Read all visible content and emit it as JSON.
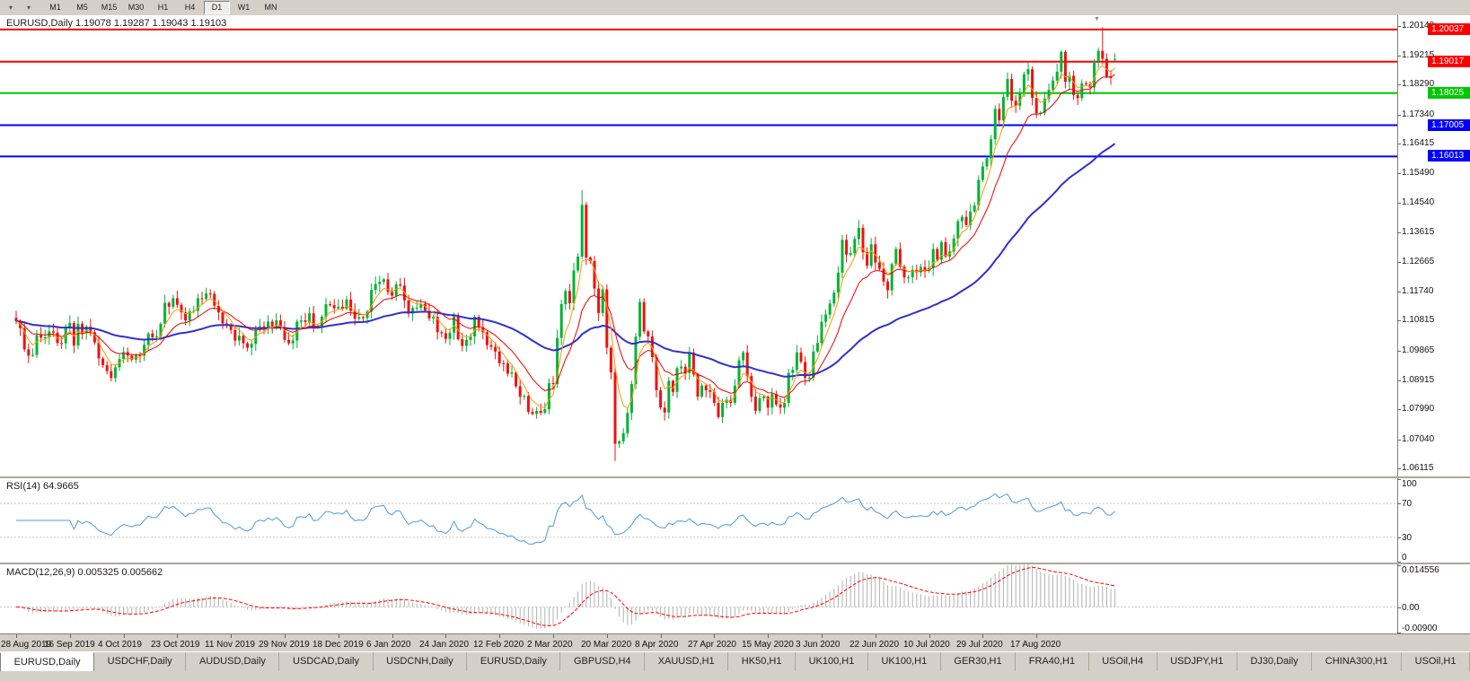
{
  "toolbar": {
    "timeframes": [
      "M1",
      "M5",
      "M15",
      "M30",
      "H1",
      "H4",
      "D1",
      "W1",
      "MN"
    ],
    "active_timeframe": "D1"
  },
  "chart_header": {
    "symbol_ohlc": "EURUSD,Daily 1.19078 1.19287 1.19043 1.19103"
  },
  "indicators": {
    "rsi_label": "RSI(14) 64.9665",
    "macd_label": "MACD(12,26,9) 0.005325 0.005662"
  },
  "price_axis": {
    "labels": [
      "1.20140",
      "1.19215",
      "1.18290",
      "1.17340",
      "1.16415",
      "1.15490",
      "1.14540",
      "1.13615",
      "1.12665",
      "1.11740",
      "1.10815",
      "1.09865",
      "1.08915",
      "1.07990",
      "1.07040",
      "1.06115"
    ]
  },
  "rsi_axis": {
    "labels": [
      "100",
      "70",
      "30",
      "0"
    ],
    "values": [
      100,
      70,
      30,
      0
    ]
  },
  "macd_axis": {
    "labels": [
      "0.014556",
      "0.00",
      "-0.00900"
    ],
    "values": [
      0.014556,
      0,
      -0.009
    ]
  },
  "levels": [
    {
      "price": 1.20037,
      "label": "1.20037",
      "color": "#ff0000"
    },
    {
      "price": 1.19017,
      "label": "1.19017",
      "color": "#ff0000"
    },
    {
      "price": 1.18025,
      "label": "1.18025",
      "color": "#00c800"
    },
    {
      "price": 1.17005,
      "label": "1.17005",
      "color": "#0000ff"
    },
    {
      "price": 1.16013,
      "label": "1.16013",
      "color": "#0000ff"
    }
  ],
  "dates": [
    "28 Aug 2019",
    "16 Sep 2019",
    "4 Oct 2019",
    "23 Oct 2019",
    "11 Nov 2019",
    "29 Nov 2019",
    "18 Dec 2019",
    "6 Jan 2020",
    "24 Jan 2020",
    "12 Feb 2020",
    "2 Mar 2020",
    "20 Mar 2020",
    "8 Apr 2020",
    "27 Apr 2020",
    "15 May 2020",
    "3 Jun 2020",
    "22 Jun 2020",
    "10 Jul 2020",
    "29 Jul 2020",
    "17 Aug 2020"
  ],
  "tabs": [
    {
      "label": "EURUSD,Daily",
      "active": true
    },
    {
      "label": "USDCHF,Daily"
    },
    {
      "label": "AUDUSD,Daily"
    },
    {
      "label": "USDCAD,Daily"
    },
    {
      "label": "USDCNH,Daily"
    },
    {
      "label": "EURUSD,Daily"
    },
    {
      "label": "GBPUSD,H4"
    },
    {
      "label": "XAUUSD,H1"
    },
    {
      "label": "HK50,H1"
    },
    {
      "label": "UK100,H1"
    },
    {
      "label": "UK100,H1"
    },
    {
      "label": "GER30,H1"
    },
    {
      "label": "FRA40,H1"
    },
    {
      "label": "USOil,H4"
    },
    {
      "label": "USDJPY,H1"
    },
    {
      "label": "DJ30,Daily"
    },
    {
      "label": "CHINA300,H1"
    },
    {
      "label": "USOil,H1"
    }
  ],
  "chart_data": {
    "type": "candlestick",
    "symbol": "EURUSD",
    "timeframe": "Daily",
    "current_ohlc": {
      "open": 1.19078,
      "high": 1.19287,
      "low": 1.19043,
      "close": 1.19103
    },
    "price_range": {
      "max": 1.2049,
      "min": 1.0587
    },
    "first_open": 1.109,
    "up_color": "#00b336",
    "down_color": "#ee1111",
    "closes": [
      1.1079,
      1.1057,
      1.099,
      1.097,
      1.0972,
      1.1035,
      1.1027,
      1.1028,
      1.1047,
      1.1043,
      1.101,
      1.1009,
      1.1062,
      1.1073,
      1.1002,
      1.1071,
      1.1041,
      1.1062,
      1.1044,
      1.1012,
      1.0961,
      1.094,
      1.0921,
      1.0899,
      1.0933,
      1.0959,
      1.0981,
      1.097,
      1.0957,
      1.0971,
      1.097,
      1.1004,
      1.104,
      1.1028,
      1.1031,
      1.1071,
      1.1137,
      1.1125,
      1.1152,
      1.1131,
      1.1107,
      1.1082,
      1.111,
      1.1112,
      1.1152,
      1.115,
      1.1167,
      1.1166,
      1.1128,
      1.1107,
      1.1072,
      1.1069,
      1.1051,
      1.1018,
      1.1033,
      1.1009,
      1.0995,
      1.1007,
      1.1052,
      1.1063,
      1.1055,
      1.1078,
      1.1063,
      1.1082,
      1.106,
      1.102,
      1.1009,
      1.1018,
      1.1078,
      1.1082,
      1.1077,
      1.1104,
      1.106,
      1.1063,
      1.1093,
      1.1133,
      1.113,
      1.112,
      1.1125,
      1.1119,
      1.1148,
      1.1112,
      1.1087,
      1.1092,
      1.1089,
      1.111,
      1.1178,
      1.1197,
      1.1204,
      1.1212,
      1.1172,
      1.116,
      1.1196,
      1.1192,
      1.1145,
      1.1103,
      1.1121,
      1.1122,
      1.1134,
      1.1113,
      1.1088,
      1.1093,
      1.1044,
      1.1041,
      1.1023,
      1.1043,
      1.1095,
      1.1022,
      1.1001,
      1.102,
      1.1031,
      1.1093,
      1.106,
      1.1044,
      1.1003,
      1.0998,
      1.0983,
      1.0946,
      1.0945,
      1.0913,
      1.0917,
      1.0873,
      1.084,
      1.0842,
      1.0792,
      1.0785,
      1.0795,
      1.0789,
      1.08,
      1.0883,
      1.088,
      1.1026,
      1.1133,
      1.1175,
      1.1136,
      1.124,
      1.1284,
      1.1448,
      1.1281,
      1.127,
      1.1183,
      1.1105,
      1.118,
      1.0995,
      1.0917,
      1.0691,
      1.0698,
      1.0724,
      1.0788,
      1.088,
      1.103,
      1.114,
      1.1047,
      1.1031,
      1.0965,
      1.086,
      1.0805,
      1.079,
      1.089,
      1.0855,
      1.093,
      1.0935,
      1.0915,
      1.098,
      1.091,
      1.084,
      1.0875,
      1.086,
      1.0855,
      1.082,
      1.0775,
      1.082,
      1.083,
      1.082,
      1.0875,
      1.0955,
      1.098,
      1.0905,
      1.084,
      1.0795,
      1.0835,
      1.084,
      1.0805,
      1.0848,
      1.0815,
      1.0805,
      1.082,
      1.0915,
      1.0925,
      1.098,
      1.095,
      1.09,
      1.09,
      1.0983,
      1.101,
      1.1077,
      1.11,
      1.1135,
      1.117,
      1.1233,
      1.1337,
      1.129,
      1.1295,
      1.134,
      1.1375,
      1.1298,
      1.1255,
      1.1323,
      1.1265,
      1.1245,
      1.1205,
      1.1177,
      1.126,
      1.1308,
      1.1252,
      1.1218,
      1.1218,
      1.1242,
      1.1234,
      1.1251,
      1.1239,
      1.1248,
      1.1308,
      1.1274,
      1.133,
      1.1284,
      1.13,
      1.1341,
      1.1396,
      1.141,
      1.1384,
      1.1427,
      1.1446,
      1.1527,
      1.157,
      1.1596,
      1.1656,
      1.1752,
      1.1716,
      1.179,
      1.1847,
      1.1778,
      1.1762,
      1.1802,
      1.1862,
      1.1878,
      1.1787,
      1.1738,
      1.174,
      1.1784,
      1.1813,
      1.1842,
      1.187,
      1.1933,
      1.1838,
      1.1857,
      1.1796,
      1.1786,
      1.1833,
      1.183,
      1.182,
      1.1903,
      1.1936,
      1.1911,
      1.1855,
      1.185,
      1.191
    ],
    "overrides": {
      "137": {
        "high": 1.1495
      },
      "145": {
        "low": 1.0636
      },
      "263": {
        "high": 1.2011
      },
      "266": {
        "open": 1.19078,
        "high": 1.19287,
        "low": 1.19043,
        "close": 1.19103
      }
    },
    "moving_averages": [
      {
        "period": 55,
        "color": "#3030cc",
        "width": 2,
        "name": "ma-slow"
      },
      {
        "period": 13,
        "color": "#ee0000",
        "width": 1,
        "name": "ma-mid"
      },
      {
        "period": 5,
        "color": "#ff9900",
        "width": 1,
        "name": "ma-fast"
      }
    ],
    "rsi": {
      "period": 14,
      "current": 64.9665,
      "color": "#4f9bd8",
      "levels": [
        70,
        30
      ]
    },
    "macd": {
      "fast": 12,
      "slow": 26,
      "signal": 9,
      "current_main": 0.005325,
      "current_signal": 0.005662,
      "range": {
        "max": 0.014556,
        "min": -0.009
      },
      "hist_color": "#b0b0b0",
      "signal_color": "#ff0000"
    }
  }
}
